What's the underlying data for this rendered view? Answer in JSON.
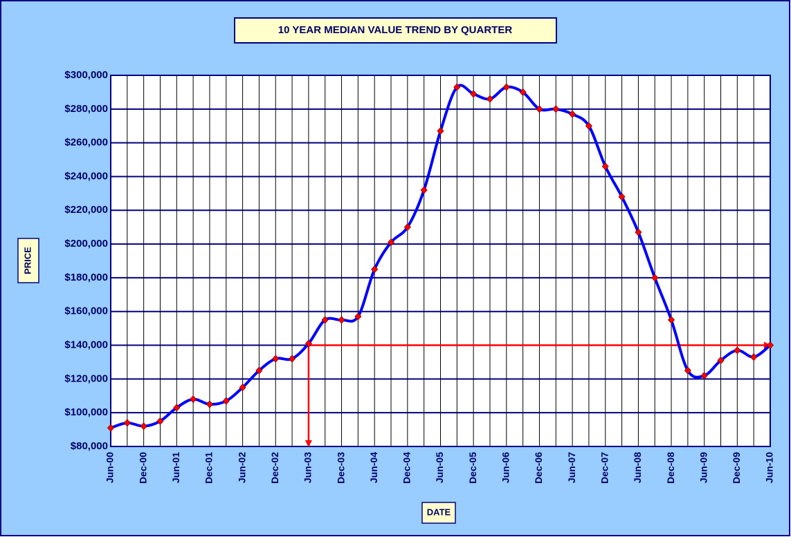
{
  "chart_data": {
    "type": "line",
    "title": "10 YEAR MEDIAN VALUE TREND BY QUARTER",
    "x_label": "DATE",
    "y_label": "PRICE",
    "categories": [
      "Jun-00",
      null,
      "Dec-00",
      null,
      "Jun-01",
      null,
      "Dec-01",
      null,
      "Jun-02",
      null,
      "Dec-02",
      null,
      "Jun-03",
      null,
      "Dec-03",
      null,
      "Jun-04",
      null,
      "Dec-04",
      null,
      "Jun-05",
      null,
      "Dec-05",
      null,
      "Jun-06",
      null,
      "Dec-06",
      null,
      "Jun-07",
      null,
      "Dec-07",
      null,
      "Jun-08",
      null,
      "Dec-08",
      null,
      "Jun-09",
      null,
      "Dec-09",
      null,
      "Jun-10"
    ],
    "values": [
      91000,
      94000,
      92000,
      95000,
      103000,
      108000,
      105000,
      107000,
      115000,
      125000,
      132000,
      132000,
      141000,
      155000,
      155000,
      157000,
      185000,
      201000,
      210000,
      232000,
      267000,
      293000,
      289000,
      286000,
      293000,
      290000,
      280000,
      280000,
      277000,
      270000,
      246000,
      228000,
      207000,
      180000,
      155000,
      125000,
      122000,
      131000,
      137000,
      133000,
      140000
    ],
    "color": "#0000ff",
    "marker_color": "#ff0000",
    "ylim": [
      80000,
      300000
    ],
    "yticks": [
      {
        "value": 80000,
        "label": "$80,000"
      },
      {
        "value": 100000,
        "label": "$100,000"
      },
      {
        "value": 120000,
        "label": "$120,000"
      },
      {
        "value": 140000,
        "label": "$140,000"
      },
      {
        "value": 160000,
        "label": "$160,000"
      },
      {
        "value": 180000,
        "label": "$180,000"
      },
      {
        "value": 200000,
        "label": "$200,000"
      },
      {
        "value": 220000,
        "label": "$220,000"
      },
      {
        "value": 240000,
        "label": "$240,000"
      },
      {
        "value": 260000,
        "label": "$260,000"
      },
      {
        "value": 280000,
        "label": "$280,000"
      },
      {
        "value": 300000,
        "label": "$300,000"
      }
    ],
    "grid": true
  }
}
